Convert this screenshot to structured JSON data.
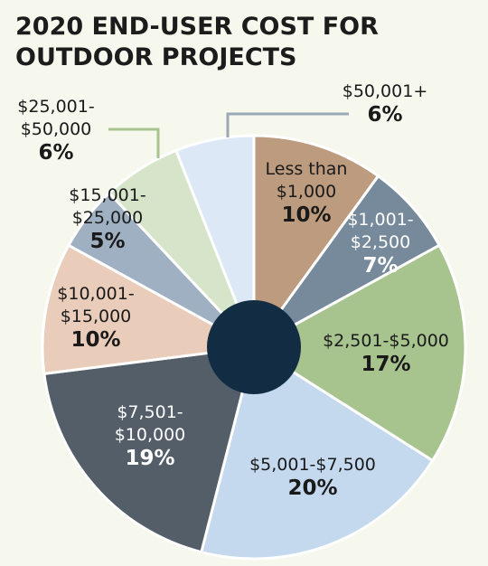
{
  "chart_data": {
    "type": "pie",
    "title_lines": [
      "2020 END-USER COST FOR",
      "OUTDOOR PROJECTS"
    ],
    "slices": [
      {
        "range_lines": [
          "Less than",
          "$1,000"
        ],
        "percent_label": "10%",
        "value": 10,
        "color": "#bd9b7f",
        "text_color": "#1a1a1a"
      },
      {
        "range_lines": [
          "$1,001-",
          "$2,500"
        ],
        "percent_label": "7%",
        "value": 7,
        "color": "#778a9c",
        "text_color": "#ffffff"
      },
      {
        "range_lines": [
          "$2,501-$5,000"
        ],
        "percent_label": "17%",
        "value": 17,
        "color": "#a7c38e",
        "text_color": "#1a1a1a"
      },
      {
        "range_lines": [
          "$5,001-$7,500"
        ],
        "percent_label": "20%",
        "value": 20,
        "color": "#c4d9ee",
        "text_color": "#1a1a1a"
      },
      {
        "range_lines": [
          "$7,501-",
          "$10,000"
        ],
        "percent_label": "19%",
        "value": 19,
        "color": "#535e68",
        "text_color": "#ffffff"
      },
      {
        "range_lines": [
          "$10,001-",
          "$15,000"
        ],
        "percent_label": "10%",
        "value": 10,
        "color": "#e9ccb9",
        "text_color": "#1a1a1a"
      },
      {
        "range_lines": [
          "$15,001-",
          "$25,000"
        ],
        "percent_label": "5%",
        "value": 5,
        "color": "#9fb0c3",
        "text_color": "#1a1a1a"
      },
      {
        "range_lines": [
          "$25,001-",
          "$50,000"
        ],
        "percent_label": "6%",
        "value": 6,
        "color": "#d6e4c9",
        "text_color": "#1a1a1a"
      },
      {
        "range_lines": [
          "$50,001+"
        ],
        "percent_label": "6%",
        "value": 6,
        "color": "#dce8f5",
        "text_color": "#1a1a1a"
      }
    ],
    "center_hole_color": "#122c43",
    "leader_line_colors": {
      "$25,001-$50,000": "#a7c38e",
      "$50,001+": "#9aa9b6"
    }
  }
}
